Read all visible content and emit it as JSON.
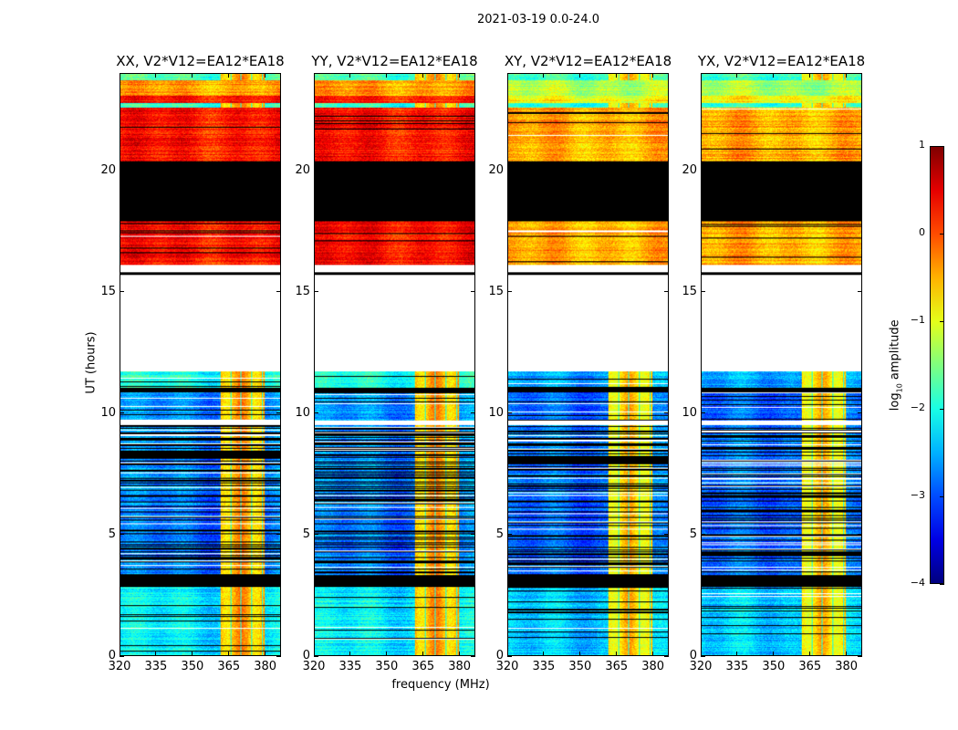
{
  "suptitle": "2021-03-19 0.0-24.0",
  "chart_data": {
    "type": "heatmap",
    "xlabel": "frequency (MHz)",
    "ylabel": "UT (hours)",
    "xlim": [
      320,
      386.5
    ],
    "ylim": [
      0,
      24
    ],
    "xticks": [
      320,
      335,
      350,
      365,
      380
    ],
    "xtick_labels": [
      "320",
      "335",
      "350",
      "365",
      "380"
    ],
    "yticks": [
      0,
      5,
      10,
      15,
      20
    ],
    "ytick_labels": [
      "0",
      "5",
      "10",
      "15",
      "20"
    ],
    "colormap": "jet",
    "colorbar": {
      "label_main": "log",
      "label_sub": "10",
      "label_rest": " amplitude",
      "range": [
        -4,
        1
      ],
      "ticks": [
        1,
        0,
        -1,
        -2,
        -3,
        -4
      ],
      "tick_labels": [
        "1",
        "0",
        "−1",
        "−2",
        "−3",
        "−4"
      ]
    },
    "panels": [
      {
        "title": "XX, V2*V12=EA12*EA18",
        "cross": false
      },
      {
        "title": "YY, V2*V12=EA12*EA18",
        "cross": false
      },
      {
        "title": "XY, V2*V12=EA12*EA18",
        "cross": true
      },
      {
        "title": "YX, V2*V12=EA12*EA18",
        "cross": true
      }
    ],
    "rfi_band_mhz": [
      361.5,
      380
    ],
    "rfi_level": -0.5,
    "time_segments": [
      {
        "t": [
          0.0,
          2.8
        ],
        "parallel": -2.2,
        "cross": -2.4,
        "rfi": true,
        "flag_frac": 0.08
      },
      {
        "t": [
          2.8,
          3.3
        ],
        "state": "flagged"
      },
      {
        "t": [
          3.3,
          6.7
        ],
        "parallel": -2.8,
        "cross": -2.9,
        "rfi": true,
        "flag_frac": 0.25
      },
      {
        "t": [
          6.7,
          9.5
        ],
        "parallel": -2.7,
        "cross": -2.8,
        "rfi": true,
        "flag_frac": 0.35
      },
      {
        "t": [
          9.5,
          9.7
        ],
        "state": "nodata"
      },
      {
        "t": [
          9.7,
          10.85
        ],
        "parallel": -2.7,
        "cross": -2.9,
        "rfi": true,
        "flag_frac": 0.1
      },
      {
        "t": [
          10.85,
          11.05
        ],
        "state": "flagged"
      },
      {
        "t": [
          11.05,
          11.7
        ],
        "parallel": -2.0,
        "cross": -2.6,
        "rfi": true,
        "flag_frac": 0.05
      },
      {
        "t": [
          11.7,
          15.7
        ],
        "state": "nodata"
      },
      {
        "t": [
          15.7,
          15.8
        ],
        "state": "flagged"
      },
      {
        "t": [
          15.8,
          16.1
        ],
        "state": "nodata"
      },
      {
        "t": [
          16.1,
          17.9
        ],
        "parallel": 0.3,
        "cross": -0.45,
        "rfi": false,
        "flag_frac": 0.04
      },
      {
        "t": [
          17.9,
          20.4
        ],
        "state": "flagged"
      },
      {
        "t": [
          20.4,
          22.6
        ],
        "parallel": 0.3,
        "cross": -0.45,
        "rfi": false,
        "flag_frac": 0.04
      },
      {
        "t": [
          22.6,
          22.8
        ],
        "parallel": -1.9,
        "cross": -1.9,
        "rfi": true,
        "flag_frac": 0.0
      },
      {
        "t": [
          22.8,
          23.1
        ],
        "parallel": 0.2,
        "cross": -0.9,
        "rfi": false,
        "flag_frac": 0.0
      },
      {
        "t": [
          23.1,
          23.75
        ],
        "parallel": -0.4,
        "cross": -1.3,
        "rfi": false,
        "flag_frac": 0.0
      },
      {
        "t": [
          23.75,
          24.0
        ],
        "parallel": -1.8,
        "cross": -1.9,
        "rfi": true,
        "flag_frac": 0.0
      }
    ]
  }
}
